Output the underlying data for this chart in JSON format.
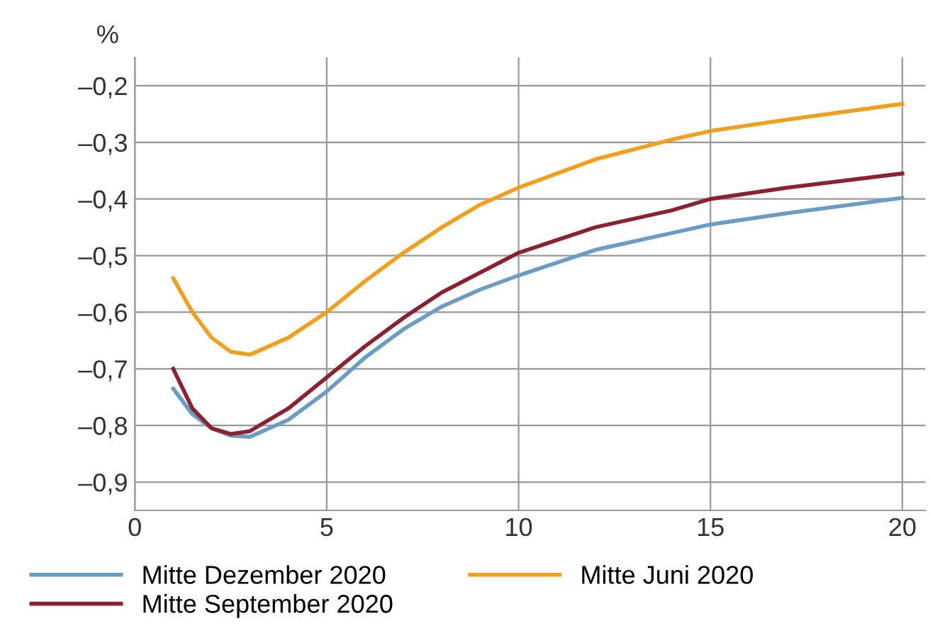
{
  "chart_data": {
    "type": "line",
    "ylabel": "%",
    "xlim": [
      0,
      20.6
    ],
    "ylim": [
      -0.95,
      -0.15
    ],
    "xticks": [
      0,
      5,
      10,
      15,
      20
    ],
    "yticks": [
      {
        "value": -0.9,
        "label": "–0,9"
      },
      {
        "value": -0.8,
        "label": "–0,8"
      },
      {
        "value": -0.7,
        "label": "–0,7"
      },
      {
        "value": -0.6,
        "label": "–0,6"
      },
      {
        "value": -0.5,
        "label": "–0,5"
      },
      {
        "value": -0.4,
        "label": "–0,4"
      },
      {
        "value": -0.3,
        "label": "–0,3"
      },
      {
        "value": -0.2,
        "label": "–0,2"
      }
    ],
    "grid": true,
    "legend": "bottom",
    "marker": "none",
    "line_style": "solid",
    "x": [
      1,
      1.5,
      2,
      2.5,
      3,
      4,
      5,
      6,
      7,
      8,
      9,
      10,
      12,
      14,
      15,
      17,
      20
    ],
    "series": [
      {
        "name": "Mitte Dezember 2020",
        "color": "#6a9cc4",
        "values": [
          -0.735,
          -0.78,
          -0.805,
          -0.818,
          -0.82,
          -0.79,
          -0.74,
          -0.68,
          -0.63,
          -0.59,
          -0.56,
          -0.535,
          -0.49,
          -0.46,
          -0.445,
          -0.425,
          -0.398
        ]
      },
      {
        "name": "Mitte September 2020",
        "color": "#8b2232",
        "values": [
          -0.7,
          -0.77,
          -0.805,
          -0.815,
          -0.81,
          -0.77,
          -0.715,
          -0.66,
          -0.61,
          -0.565,
          -0.53,
          -0.495,
          -0.45,
          -0.42,
          -0.4,
          -0.38,
          -0.355
        ]
      },
      {
        "name": "Mitte Juni 2020",
        "color": "#f0a020",
        "values": [
          -0.54,
          -0.6,
          -0.645,
          -0.67,
          -0.675,
          -0.645,
          -0.6,
          -0.545,
          -0.495,
          -0.45,
          -0.41,
          -0.38,
          -0.33,
          -0.295,
          -0.28,
          -0.26,
          -0.232
        ]
      }
    ]
  }
}
